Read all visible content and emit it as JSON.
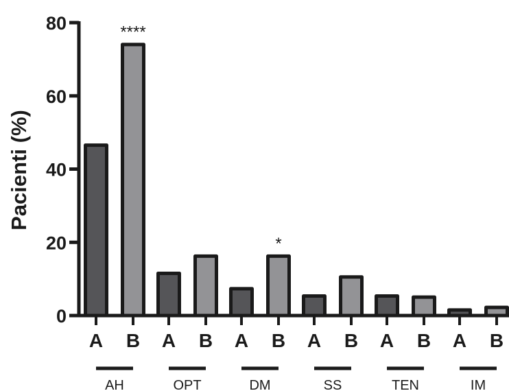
{
  "chart_data": {
    "type": "bar",
    "ylabel": "Pacienti (%)",
    "xlabel": "",
    "ylim": [
      0,
      80
    ],
    "yticks": [
      0,
      20,
      40,
      60,
      80
    ],
    "grid": false,
    "legend": "none",
    "groups": [
      {
        "label": "AH",
        "a": 47,
        "b": 74.5,
        "sig": "****"
      },
      {
        "label": "OPT",
        "a": 12,
        "b": 16.7,
        "sig": ""
      },
      {
        "label": "DM",
        "a": 7.8,
        "b": 16.7,
        "sig": "*"
      },
      {
        "label": "SS",
        "a": 5.8,
        "b": 11,
        "sig": ""
      },
      {
        "label": "TEN",
        "a": 5.8,
        "b": 5.5,
        "sig": ""
      },
      {
        "label": "IM",
        "a": 2,
        "b": 2.7,
        "sig": ""
      }
    ],
    "series": [
      {
        "name": "A",
        "color": "#555558"
      },
      {
        "name": "B",
        "color": "#939396"
      }
    ],
    "outline_color": "#1a1a1a"
  }
}
